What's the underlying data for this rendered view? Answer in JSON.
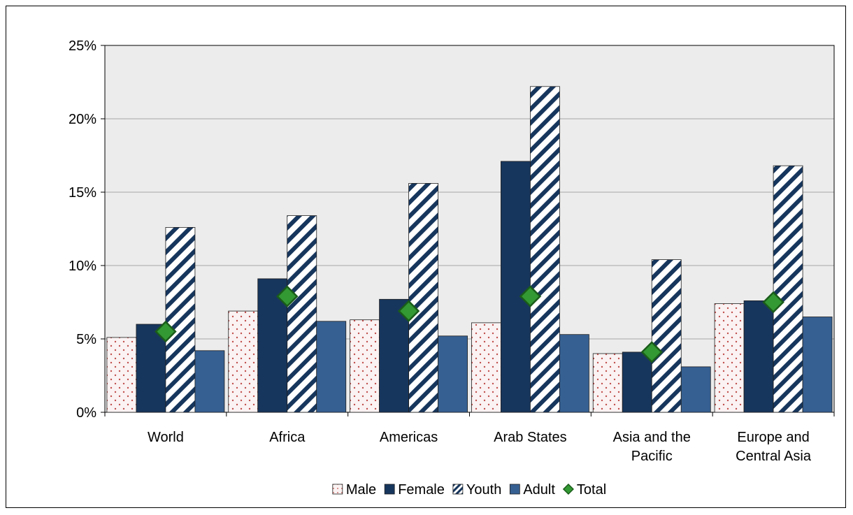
{
  "chart_data": {
    "type": "bar",
    "title": "",
    "xlabel": "",
    "ylabel": "",
    "categories": [
      [
        "World"
      ],
      [
        "Africa"
      ],
      [
        "Americas"
      ],
      [
        "Arab States"
      ],
      [
        "Asia and the",
        "Pacific"
      ],
      [
        "Europe and",
        "Central Asia"
      ]
    ],
    "ylim": [
      0,
      25
    ],
    "yticks": [
      0,
      5,
      10,
      15,
      20,
      25
    ],
    "ytick_suffix": "%",
    "grid": true,
    "legend_position": "bottom",
    "series": [
      {
        "name": "Male",
        "kind": "bar",
        "style": "dotted",
        "color": "#f4e0e0",
        "values": [
          5.1,
          6.9,
          6.3,
          6.1,
          4.0,
          7.4
        ]
      },
      {
        "name": "Female",
        "kind": "bar",
        "style": "solid",
        "color": "#17365d",
        "values": [
          6.0,
          9.1,
          7.7,
          17.1,
          4.1,
          7.6
        ]
      },
      {
        "name": "Youth",
        "kind": "bar",
        "style": "hatched",
        "color": "#17365d",
        "values": [
          12.6,
          13.4,
          15.6,
          22.2,
          10.4,
          16.8
        ]
      },
      {
        "name": "Adult",
        "kind": "bar",
        "style": "solid",
        "color": "#366092",
        "values": [
          4.2,
          6.2,
          5.2,
          5.3,
          3.1,
          6.5
        ]
      },
      {
        "name": "Total",
        "kind": "marker",
        "style": "diamond",
        "color": "#339933",
        "values": [
          5.5,
          7.9,
          6.9,
          7.9,
          4.1,
          7.5
        ]
      }
    ],
    "colors": {
      "plot_background": "#ececec",
      "gridline": "#a6a6a6",
      "marker_border": "#1a5c1a",
      "dot": "#c0504d"
    }
  }
}
